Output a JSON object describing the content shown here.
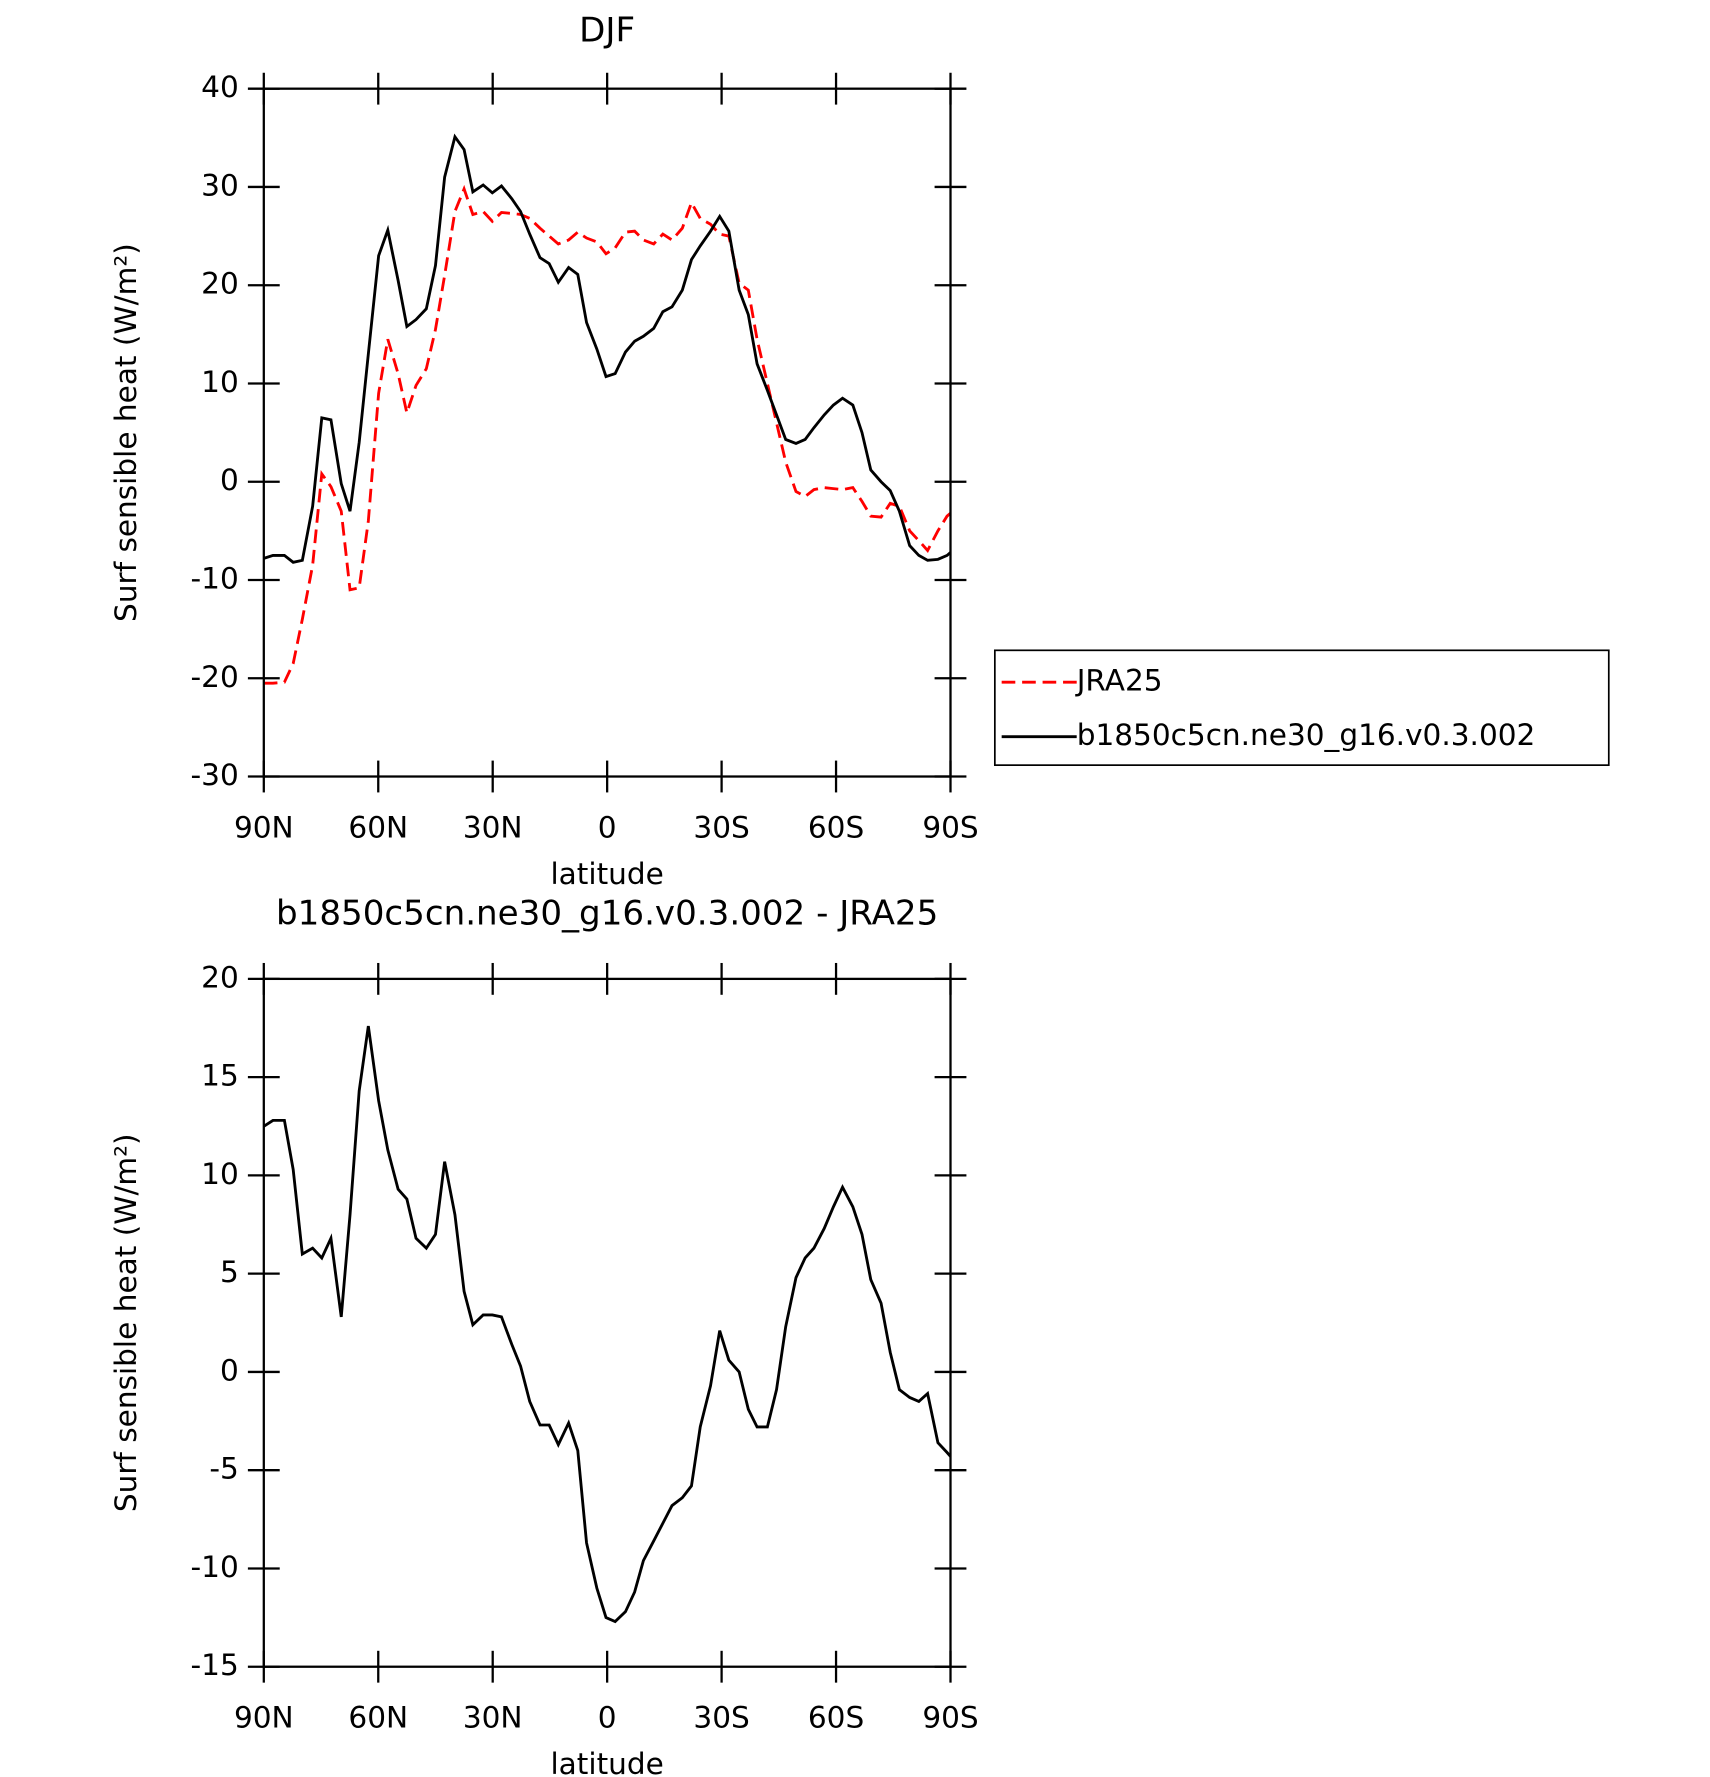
{
  "chart_data": [
    {
      "type": "line",
      "title": "DJF",
      "xlabel": "latitude",
      "ylabel": "Surf sensible heat (W/m²)",
      "x": [
        90,
        87.6,
        84.6,
        82.3,
        79.9,
        77.2,
        74.8,
        72.4,
        69.7,
        67.4,
        65.0,
        62.6,
        59.9,
        57.5,
        54.8,
        52.5,
        50.1,
        47.4,
        45.0,
        42.6,
        39.9,
        37.5,
        35.2,
        32.5,
        30.1,
        27.7,
        25.0,
        22.7,
        20.3,
        17.6,
        15.2,
        12.8,
        10.1,
        7.7,
        5.4,
        2.7,
        0.3,
        -2.1,
        -4.8,
        -7.2,
        -9.5,
        -12.2,
        -14.6,
        -17.0,
        -19.7,
        -22.1,
        -24.4,
        -27.1,
        -29.5,
        -31.9,
        -34.6,
        -37.0,
        -39.3,
        -42.0,
        -44.4,
        -46.8,
        -49.5,
        -51.9,
        -54.2,
        -56.9,
        -59.3,
        -61.7,
        -64.4,
        -66.8,
        -69.1,
        -71.8,
        -74.2,
        -76.6,
        -79.3,
        -81.7,
        -84.0,
        -86.7,
        -89.1,
        -90
      ],
      "series": [
        {
          "name": "JRA25",
          "color": "#ff0000",
          "linestyle": "dashed",
          "values": [
            -20.5,
            -20.5,
            -20.4,
            -18.5,
            -14,
            -8.5,
            0.8,
            -0.5,
            -3,
            -11,
            -10.8,
            -4,
            9,
            14.5,
            11,
            7,
            9.8,
            11.5,
            15.5,
            21,
            27.5,
            29.8,
            27.2,
            27.5,
            26.5,
            27.4,
            27.3,
            27.2,
            26.8,
            25.8,
            25,
            24.2,
            24.6,
            25.4,
            24.8,
            24.4,
            23.2,
            23.8,
            25.4,
            25.5,
            24.6,
            24.2,
            25.2,
            24.6,
            25.8,
            28.4,
            26.8,
            26.2,
            25.2,
            25,
            20.2,
            19.5,
            14.5,
            10,
            6,
            2,
            -1,
            -1.5,
            -0.8,
            -0.6,
            -0.7,
            -0.8,
            -0.6,
            -2,
            -3.5,
            -3.6,
            -2.2,
            -2.5,
            -5,
            -6,
            -7,
            -5,
            -3.5,
            -3.2
          ]
        },
        {
          "name": "b1850c5cn.ne30_g16.v0.3.002",
          "color": "#000000",
          "linestyle": "solid",
          "values": [
            -7.8,
            -7.5,
            -7.5,
            -8.2,
            -8,
            -2.5,
            6.5,
            6.3,
            -0.2,
            -3,
            4,
            13,
            23,
            25.6,
            20.5,
            15.8,
            16.5,
            17.6,
            22,
            31,
            35.1,
            33.8,
            29.5,
            30.2,
            29.4,
            30.1,
            28.8,
            27.5,
            25.2,
            22.8,
            22.2,
            20.3,
            21.8,
            21.1,
            16.2,
            13.5,
            10.7,
            11,
            13.2,
            14.3,
            14.8,
            15.6,
            17.3,
            17.8,
            19.5,
            22.6,
            24,
            25.5,
            27,
            25.5,
            19.5,
            17,
            12,
            9.3,
            6.8,
            4.3,
            3.9,
            4.3,
            5.5,
            6.8,
            7.8,
            8.5,
            7.8,
            5,
            1.2,
            0,
            -0.9,
            -3,
            -6.5,
            -7.5,
            -8,
            -7.9,
            -7.5,
            -7.2
          ]
        }
      ],
      "xlim": [
        90,
        -90
      ],
      "xticks": [
        {
          "value": 90,
          "label": "90N"
        },
        {
          "value": 60,
          "label": "60N"
        },
        {
          "value": 30,
          "label": "30N"
        },
        0,
        {
          "value": -30,
          "label": "30S"
        },
        {
          "value": -60,
          "label": "60S"
        },
        {
          "value": -90,
          "label": "90S"
        }
      ],
      "ylim": [
        -30,
        40
      ],
      "yticks": [
        -30,
        -20,
        -10,
        0,
        10,
        20,
        30,
        40
      ],
      "legend": "right"
    },
    {
      "type": "line",
      "title": "b1850c5cn.ne30_g16.v0.3.002 - JRA25",
      "xlabel": "latitude",
      "ylabel": "Surf sensible heat (W/m²)",
      "x": [
        90,
        87.6,
        84.6,
        82.3,
        79.9,
        77.2,
        74.8,
        72.4,
        69.7,
        67.4,
        65.0,
        62.6,
        59.9,
        57.5,
        54.8,
        52.5,
        50.1,
        47.4,
        45.0,
        42.6,
        39.9,
        37.5,
        35.2,
        32.5,
        30.1,
        27.7,
        25.0,
        22.7,
        20.3,
        17.6,
        15.2,
        12.8,
        10.1,
        7.7,
        5.4,
        2.7,
        0.3,
        -2.1,
        -4.8,
        -7.2,
        -9.5,
        -12.2,
        -14.6,
        -17.0,
        -19.7,
        -22.1,
        -24.4,
        -27.1,
        -29.5,
        -31.9,
        -34.6,
        -37.0,
        -39.3,
        -42.0,
        -44.4,
        -46.8,
        -49.5,
        -51.9,
        -54.2,
        -56.9,
        -59.3,
        -61.7,
        -64.4,
        -66.8,
        -69.1,
        -71.8,
        -74.2,
        -76.6,
        -79.3,
        -81.7,
        -84.0,
        -86.7,
        -89.1,
        -90
      ],
      "series": [
        {
          "color": "#000000",
          "linestyle": "solid",
          "values": [
            12.5,
            12.8,
            12.8,
            10.3,
            6,
            6.3,
            5.8,
            6.8,
            2.8,
            8,
            14.3,
            17.6,
            13.8,
            11.3,
            9.3,
            8.8,
            6.8,
            6.3,
            7,
            10.7,
            8,
            4.1,
            2.4,
            2.9,
            2.9,
            2.8,
            1.4,
            0.3,
            -1.5,
            -2.7,
            -2.7,
            -3.7,
            -2.6,
            -4,
            -8.7,
            -11,
            -12.5,
            -12.7,
            -12.2,
            -11.2,
            -9.6,
            -8.6,
            -7.7,
            -6.8,
            -6.4,
            -5.8,
            -2.8,
            -0.7,
            2.1,
            0.6,
            0,
            -1.9,
            -2.8,
            -2.8,
            -0.9,
            2.3,
            4.8,
            5.8,
            6.3,
            7.3,
            8.4,
            9.4,
            8.4,
            7,
            4.7,
            3.5,
            1,
            -0.9,
            -1.3,
            -1.5,
            -1.1,
            -3.6,
            -4.1,
            -4.3
          ]
        }
      ],
      "xlim": [
        90,
        -90
      ],
      "xticks": [
        {
          "value": 90,
          "label": "90N"
        },
        {
          "value": 60,
          "label": "60N"
        },
        {
          "value": 30,
          "label": "30N"
        },
        0,
        {
          "value": -30,
          "label": "30S"
        },
        {
          "value": -60,
          "label": "60S"
        },
        {
          "value": -90,
          "label": "90S"
        }
      ],
      "ylim": [
        -15,
        20
      ],
      "yticks": [
        -15,
        -10,
        -5,
        0,
        5,
        10,
        15,
        20
      ]
    }
  ]
}
